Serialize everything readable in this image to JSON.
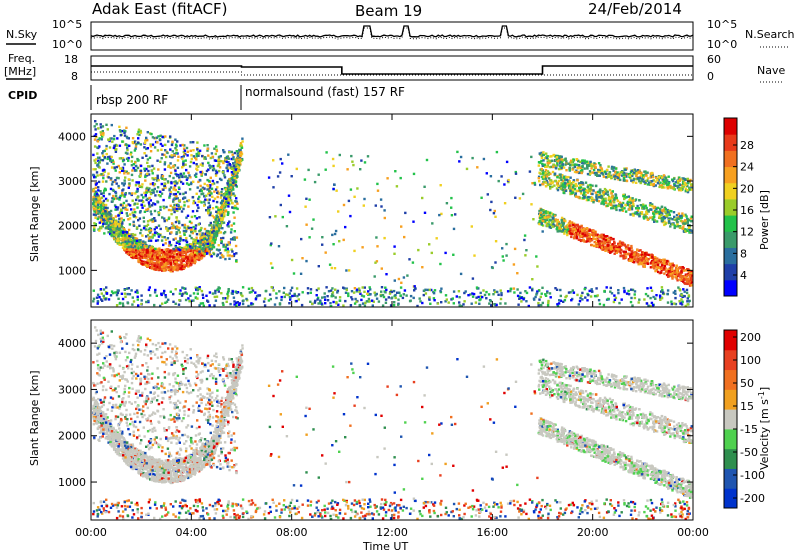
{
  "header": {
    "radar": "Adak East (fitACF)",
    "beam": "Beam 19",
    "date": "24/Feb/2014"
  },
  "left_labels": {
    "nsky": "N.Sky",
    "freq": "Freq.",
    "freq_unit": "[MHz]",
    "cpid": "CPID"
  },
  "right_labels": {
    "nsearch": "N.Search",
    "nave": "Nave"
  },
  "noise_axis": {
    "top": "10^5",
    "bottom": "10^0"
  },
  "freq_axis": {
    "top": "18",
    "bottom": "8"
  },
  "nave_axis": {
    "top": "60",
    "bottom": "0"
  },
  "cpid_segments": [
    {
      "label": "rbsp 200 RF"
    },
    {
      "label": "normalsound (fast) 157 RF"
    }
  ],
  "x_axis": {
    "ticks": [
      "00:00",
      "04:00",
      "08:00",
      "12:00",
      "16:00",
      "20:00",
      "00:00"
    ],
    "label": "Time UT"
  },
  "chart_data": [
    {
      "type": "heatmap",
      "title": "",
      "ylabel": "Slant Range [km]",
      "ylim": [
        180,
        4500
      ],
      "yticks": [
        "1000",
        "2000",
        "3000",
        "4000"
      ],
      "colorbar_label": "Power [dB]",
      "colorbar_ticks": [
        "4",
        "8",
        "12",
        "16",
        "20",
        "24",
        "28"
      ],
      "colormap": [
        "#0000ff",
        "#1f3fa8",
        "#2a6e9e",
        "#3a9a6a",
        "#22c24a",
        "#9acc2a",
        "#f0d020",
        "#f7a020",
        "#f07020",
        "#e83a1a",
        "#dd0000"
      ]
    },
    {
      "type": "heatmap",
      "title": "",
      "ylabel": "Slant Range [km]",
      "ylim": [
        180,
        4500
      ],
      "yticks": [
        "1000",
        "2000",
        "3000",
        "4000"
      ],
      "colorbar_label": "Velocity [m s^-1]",
      "colorbar_ticks": [
        "200",
        "100",
        "50",
        "15",
        "-15",
        "-50",
        "-100",
        "-200"
      ],
      "colormap": [
        "#0033cc",
        "#1f55b0",
        "#2f8f4f",
        "#4fd14f",
        "#c8c8c0",
        "#f0a020",
        "#f07020",
        "#e84020",
        "#e00000"
      ]
    }
  ]
}
